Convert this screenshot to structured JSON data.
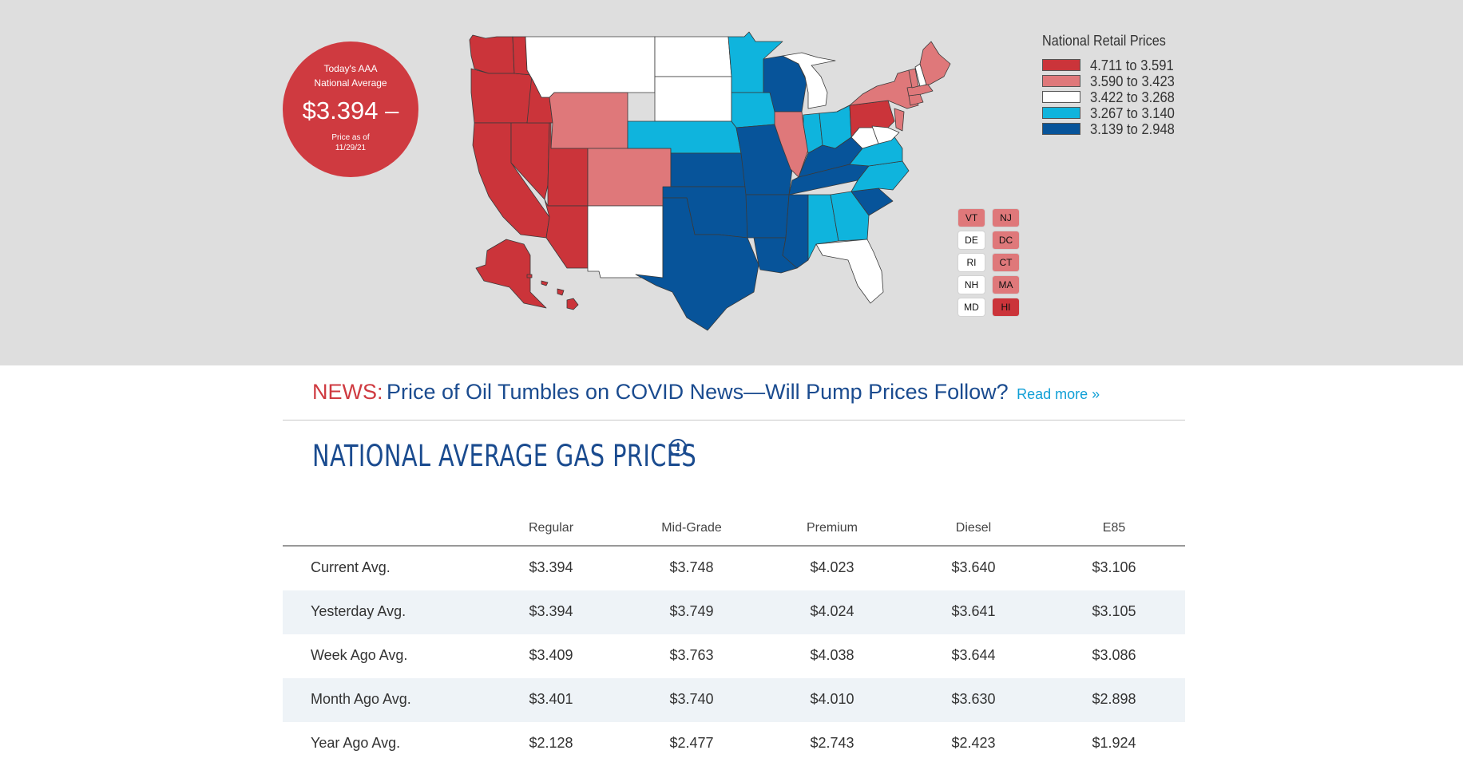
{
  "badge": {
    "line1": "Today's AAA",
    "line2": "National Average",
    "price": "$3.394",
    "price_note": "Price as of",
    "date": "11/29/21"
  },
  "legend": {
    "title": "National Retail Prices",
    "items": [
      {
        "label": "4.711 to 3.591",
        "color": "#cb343a"
      },
      {
        "label": "3.590 to 3.423",
        "color": "#df787a"
      },
      {
        "label": "3.422 to 3.268",
        "color": "#ffffff"
      },
      {
        "label": "3.267 to 3.140",
        "color": "#0fb4dd"
      },
      {
        "label": "3.139 to 2.948",
        "color": "#07549a"
      }
    ]
  },
  "small_states": [
    {
      "abbr": "VT",
      "color": "#df787a"
    },
    {
      "abbr": "NJ",
      "color": "#df787a"
    },
    {
      "abbr": "DE",
      "color": "#ffffff"
    },
    {
      "abbr": "DC",
      "color": "#df787a"
    },
    {
      "abbr": "RI",
      "color": "#ffffff"
    },
    {
      "abbr": "CT",
      "color": "#df787a"
    },
    {
      "abbr": "NH",
      "color": "#ffffff"
    },
    {
      "abbr": "MA",
      "color": "#df787a"
    },
    {
      "abbr": "MD",
      "color": "#ffffff"
    },
    {
      "abbr": "HI",
      "color": "#cb343a"
    }
  ],
  "news": {
    "tag": "NEWS:",
    "headline": "Price of Oil Tumbles on COVID News—Will Pump Prices Follow?",
    "read_more": "Read more »"
  },
  "section_title": "NATIONAL AVERAGE GAS PRICES",
  "table": {
    "columns": [
      "Regular",
      "Mid-Grade",
      "Premium",
      "Diesel",
      "E85"
    ],
    "rows": [
      {
        "label": "Current Avg.",
        "values": [
          "$3.394",
          "$3.748",
          "$4.023",
          "$3.640",
          "$3.106"
        ]
      },
      {
        "label": "Yesterday Avg.",
        "values": [
          "$3.394",
          "$3.749",
          "$4.024",
          "$3.641",
          "$3.105"
        ]
      },
      {
        "label": "Week Ago Avg.",
        "values": [
          "$3.409",
          "$3.763",
          "$4.038",
          "$3.644",
          "$3.086"
        ]
      },
      {
        "label": "Month Ago Avg.",
        "values": [
          "$3.401",
          "$3.740",
          "$4.010",
          "$3.630",
          "$2.898"
        ]
      },
      {
        "label": "Year Ago Avg.",
        "values": [
          "$2.128",
          "$2.477",
          "$2.743",
          "$2.423",
          "$1.924"
        ]
      }
    ]
  }
}
